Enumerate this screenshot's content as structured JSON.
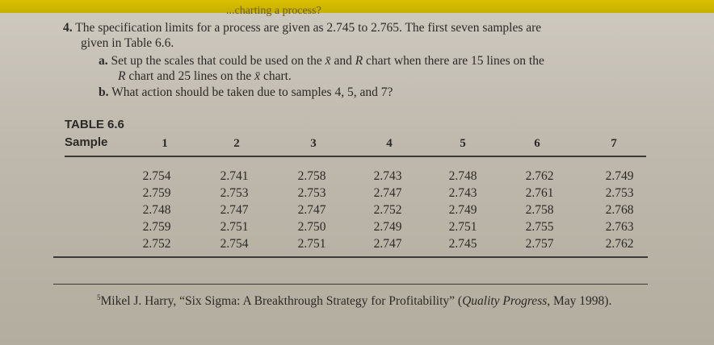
{
  "header": {
    "cut_text": "...charting a process?"
  },
  "problem": {
    "number": "4.",
    "text_line1": "The specification limits for a process are given as 2.745 to 2.765. The first seven samples are",
    "text_line2": "given in Table 6.6.",
    "a_label": "a.",
    "a_line1_pre": "Set up the scales that could be used on the ",
    "xbar": "x̄",
    "a_line1_mid": " and ",
    "R": "R",
    "a_line1_post": " chart when there are 15 lines on the",
    "a_line2_pre": " chart and 25 lines on the ",
    "a_line2_post": " chart.",
    "b_label": "b.",
    "b_text": "What action should be taken due to samples 4, 5, and 7?"
  },
  "table": {
    "caption": "TABLE 6.6",
    "sample_label": "Sample",
    "columns": [
      {
        "header": "1",
        "values": [
          "2.754",
          "2.759",
          "2.748",
          "2.759",
          "2.752"
        ]
      },
      {
        "header": "2",
        "values": [
          "2.741",
          "2.753",
          "2.747",
          "2.751",
          "2.754"
        ]
      },
      {
        "header": "3",
        "values": [
          "2.758",
          "2.753",
          "2.747",
          "2.750",
          "2.751"
        ]
      },
      {
        "header": "4",
        "values": [
          "2.743",
          "2.747",
          "2.752",
          "2.749",
          "2.747"
        ]
      },
      {
        "header": "5",
        "values": [
          "2.748",
          "2.743",
          "2.749",
          "2.751",
          "2.745"
        ]
      },
      {
        "header": "6",
        "values": [
          "2.762",
          "2.761",
          "2.758",
          "2.755",
          "2.757"
        ]
      },
      {
        "header": "7",
        "values": [
          "2.749",
          "2.753",
          "2.768",
          "2.763",
          "2.762"
        ]
      }
    ]
  },
  "footnote": {
    "mark": "5",
    "pre": "Mikel J. Harry, “Six Sigma: A Breakthrough Strategy for Profitability” (",
    "journal": "Quality Progress",
    "post": ", May 1998)."
  }
}
